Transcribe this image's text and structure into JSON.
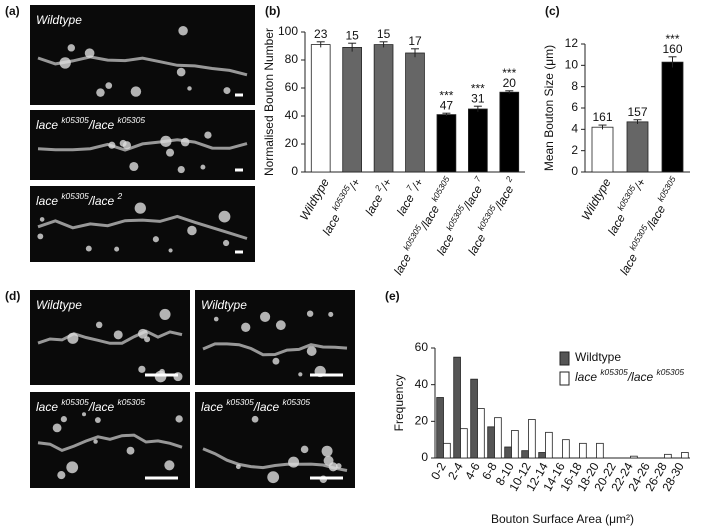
{
  "panels": [
    {
      "label": "(a)",
      "images": [
        [
          "Wildtype"
        ],
        [
          "lace ",
          "k05305",
          "/lace ",
          "k05305"
        ],
        [
          "lace ",
          "k05305",
          "/lace ",
          "2"
        ]
      ]
    },
    {
      "label": "(d)",
      "images": [
        [
          "Wildtype"
        ],
        [
          "Wildtype"
        ],
        [
          "lace ",
          "k05305",
          "/lace ",
          "k05305"
        ],
        [
          "lace ",
          "k05305",
          "/lace ",
          "k05305"
        ]
      ]
    }
  ],
  "chart_data": [
    {
      "type": "bar",
      "panel_label": "(b)",
      "ylabel": "Normalised Bouton Number",
      "categories": [
        [
          "Wildtype"
        ],
        [
          "lace ",
          "k05305",
          "/+"
        ],
        [
          "lace ",
          "2",
          "/+"
        ],
        [
          "lace ",
          "7",
          "/+"
        ],
        [
          "lace ",
          "k05305",
          "/lace ",
          "k05305"
        ],
        [
          "lace ",
          "k05305",
          "/lace ",
          "7"
        ],
        [
          "lace ",
          "k05305",
          "/lace ",
          "2"
        ]
      ],
      "values": [
        91,
        89,
        91,
        85,
        41,
        45,
        57
      ],
      "errors": [
        2,
        3,
        2,
        3,
        1,
        2,
        1
      ],
      "colors": [
        "#ffffff",
        "#666666",
        "#666666",
        "#666666",
        "#000000",
        "#000000",
        "#000000"
      ],
      "n": [
        23,
        15,
        15,
        17,
        47,
        31,
        20
      ],
      "significance": [
        null,
        null,
        null,
        null,
        "***",
        "***",
        "***"
      ],
      "ylim": [
        0,
        100
      ],
      "yticks": [
        0,
        20,
        40,
        60,
        80,
        100
      ]
    },
    {
      "type": "bar",
      "panel_label": "(c)",
      "ylabel": "Mean Bouton Size (μm)",
      "categories": [
        [
          "Wildtype"
        ],
        [
          "lace ",
          "k05305",
          "/+"
        ],
        [
          "lace ",
          "k05305",
          "/lace ",
          "k05305"
        ]
      ],
      "values": [
        4.2,
        4.7,
        10.3
      ],
      "errors": [
        0.2,
        0.2,
        0.5
      ],
      "colors": [
        "#ffffff",
        "#666666",
        "#000000"
      ],
      "n": [
        161,
        157,
        160
      ],
      "significance": [
        null,
        null,
        "***"
      ],
      "ylim": [
        0,
        12
      ],
      "yticks": [
        0,
        2,
        4,
        6,
        8,
        10,
        12
      ]
    },
    {
      "type": "bar",
      "panel_label": "(e)",
      "ylabel": "Frequency",
      "xlabel": "Bouton Surface Area (μm²)",
      "categories": [
        "0-2",
        "2-4",
        "4-6",
        "6-8",
        "8-10",
        "10-12",
        "12-14",
        "14-16",
        "16-18",
        "18-20",
        "20-22",
        "22-24",
        "24-26",
        "26-28",
        "28-30"
      ],
      "series": [
        {
          "name": [
            "Wildtype"
          ],
          "color": "#555555",
          "values": [
            33,
            55,
            43,
            17,
            6,
            4,
            3,
            0,
            0,
            0,
            0,
            0,
            0,
            0,
            0
          ]
        },
        {
          "name": [
            "lace ",
            "k05305",
            "/lace ",
            "k05305"
          ],
          "color": "#ffffff",
          "values": [
            8,
            16,
            27,
            22,
            15,
            21,
            14,
            10,
            8,
            8,
            0,
            1,
            0,
            2,
            3
          ]
        }
      ],
      "ylim": [
        0,
        60
      ],
      "yticks": [
        0,
        20,
        40,
        60
      ],
      "legend": "upper right"
    }
  ]
}
